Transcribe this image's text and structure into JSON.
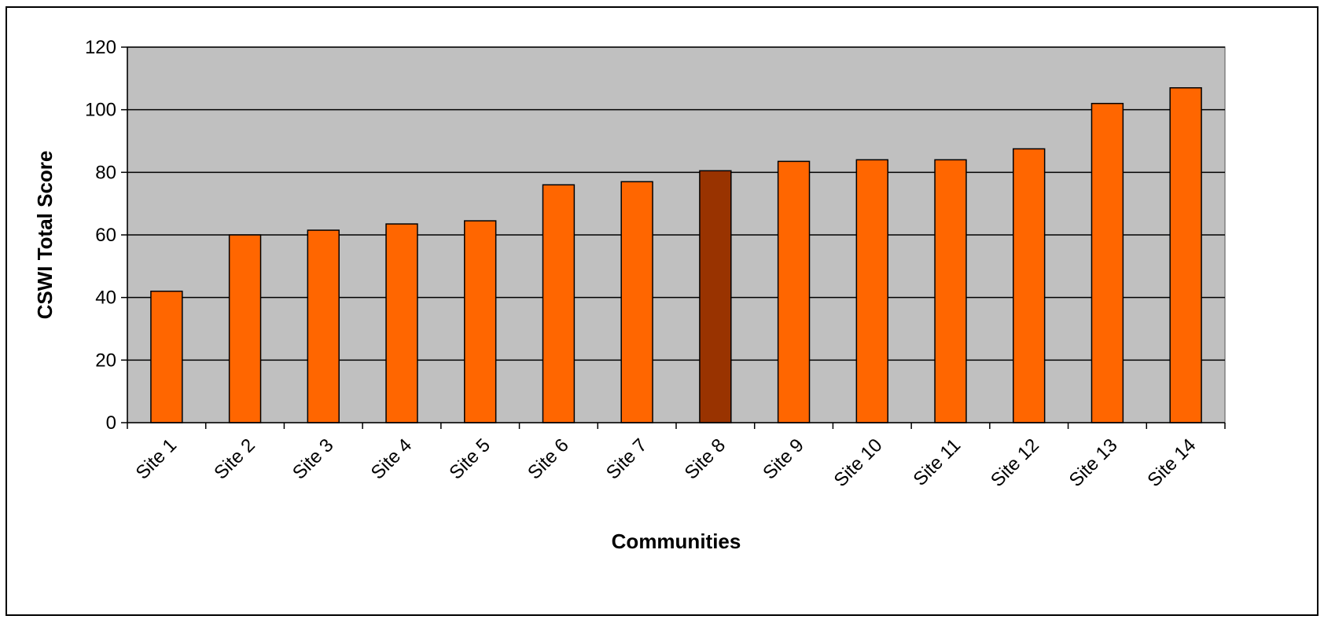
{
  "chart_data": {
    "type": "bar",
    "title": "",
    "xlabel": "Communities",
    "ylabel": "CSWI Total Score",
    "categories": [
      "Site 1",
      "Site 2",
      "Site 3",
      "Site 4",
      "Site 5",
      "Site 6",
      "Site 7",
      "Site 8",
      "Site 9",
      "Site 10",
      "Site 11",
      "Site 12",
      "Site 13",
      "Site 14"
    ],
    "values": [
      42,
      60,
      61.5,
      63.5,
      64.5,
      76,
      77,
      80.5,
      83.5,
      84,
      84,
      87.5,
      102,
      107
    ],
    "highlight_category": "Site 8",
    "ylim": [
      0,
      120
    ],
    "yticks": [
      0,
      20,
      40,
      60,
      80,
      100,
      120
    ],
    "grid": true,
    "legend": "none",
    "colors": {
      "bar": "#FF6600",
      "highlight_bar": "#993300",
      "plot_background": "#C0C0C0",
      "gridline": "#000000"
    }
  }
}
